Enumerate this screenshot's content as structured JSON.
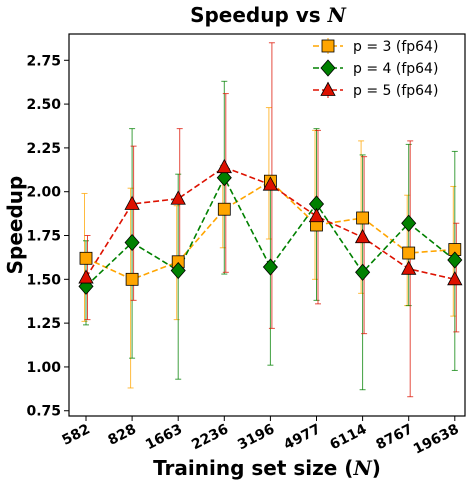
{
  "chart_data": {
    "type": "line",
    "title": "Speedup vs N",
    "title_prefix": "Speedup vs ",
    "title_var": "N",
    "xlabel": "Training set size (N)",
    "xlabel_prefix": "Training set size (",
    "xlabel_var": "N",
    "xlabel_suffix": ")",
    "ylabel": "Speedup",
    "categories": [
      "582",
      "828",
      "1663",
      "2236",
      "3196",
      "4977",
      "6114",
      "8767",
      "19638"
    ],
    "ylim": [
      0.72,
      2.9
    ],
    "yticks": [
      "0.75",
      "1.00",
      "1.25",
      "1.50",
      "1.75",
      "2.00",
      "2.25",
      "2.50",
      "2.75"
    ],
    "grid": false,
    "legend_position": "top-right",
    "series": [
      {
        "name": "p = 3 (fp64)",
        "color": "#ffa500",
        "marker": "square",
        "values": [
          1.62,
          1.5,
          1.6,
          1.9,
          2.06,
          1.81,
          1.85,
          1.65,
          1.67
        ],
        "err_low": [
          0.36,
          0.62,
          0.33,
          0.22,
          0.33,
          0.31,
          0.43,
          0.3,
          0.38
        ],
        "err_high": [
          0.37,
          0.52,
          0.32,
          0.25,
          0.42,
          0.54,
          0.44,
          0.33,
          0.36
        ]
      },
      {
        "name": "p = 4 (fp64)",
        "color": "#008000",
        "marker": "diamond",
        "values": [
          1.46,
          1.71,
          1.55,
          2.08,
          1.57,
          1.93,
          1.54,
          1.82,
          1.61
        ],
        "err_low": [
          0.22,
          0.66,
          0.62,
          0.55,
          0.56,
          0.55,
          0.67,
          0.47,
          0.63
        ],
        "err_high": [
          0.26,
          0.65,
          0.55,
          0.55,
          0.48,
          0.43,
          0.67,
          0.45,
          0.62
        ]
      },
      {
        "name": "p = 5 (fp64)",
        "color": "#dd1100",
        "marker": "triangle",
        "values": [
          1.51,
          1.93,
          1.96,
          2.14,
          2.04,
          1.86,
          1.74,
          1.56,
          1.5
        ],
        "err_low": [
          0.24,
          0.55,
          0.4,
          0.6,
          0.82,
          0.5,
          0.55,
          0.73,
          0.3
        ],
        "err_high": [
          0.24,
          0.33,
          0.4,
          0.42,
          0.81,
          0.49,
          0.46,
          0.73,
          0.32
        ]
      }
    ]
  }
}
